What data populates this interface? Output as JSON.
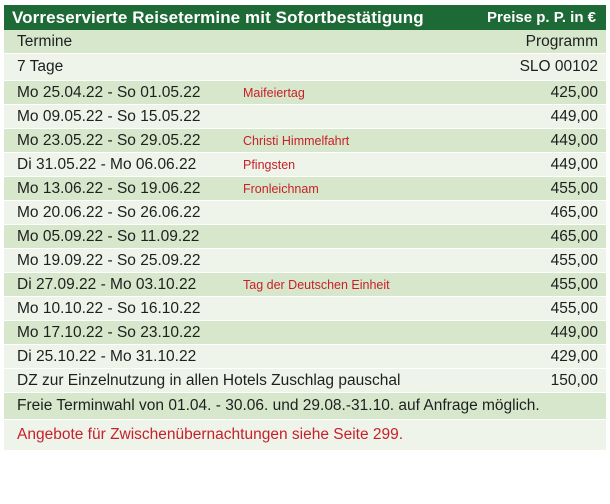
{
  "header": {
    "title": "Vorreservierte Reisetermine mit Sofortbestätigung",
    "price_note": "Preise p. P. in €"
  },
  "subheader": {
    "left": "Termine",
    "right": "Programm"
  },
  "program": {
    "left": "7 Tage",
    "right": "SLO 00102"
  },
  "dates": [
    {
      "date": "Mo 25.04.22 - So 01.05.22",
      "note": "Maifeiertag",
      "price": "425,00"
    },
    {
      "date": "Mo 09.05.22 - So 15.05.22",
      "note": "",
      "price": "449,00"
    },
    {
      "date": "Mo 23.05.22 - So 29.05.22",
      "note": "Christi Himmelfahrt",
      "price": "449,00"
    },
    {
      "date": "Di  31.05.22 - Mo 06.06.22",
      "note": "Pfingsten",
      "price": "449,00"
    },
    {
      "date": "Mo 13.06.22 - So 19.06.22",
      "note": "Fronleichnam",
      "price": "455,00"
    },
    {
      "date": "Mo 20.06.22 - So 26.06.22",
      "note": "",
      "price": "465,00"
    },
    {
      "date": "Mo 05.09.22 - So 11.09.22",
      "note": "",
      "price": "465,00"
    },
    {
      "date": "Mo 19.09.22 - So 25.09.22",
      "note": "",
      "price": "455,00"
    },
    {
      "date": "Di  27.09.22 - Mo 03.10.22",
      "note": "Tag der Deutschen Einheit",
      "price": "455,00"
    },
    {
      "date": "Mo 10.10.22 - So 16.10.22",
      "note": "",
      "price": "455,00"
    },
    {
      "date": "Mo 17.10.22 - So  23.10.22",
      "note": "",
      "price": "449,00"
    },
    {
      "date": "Di  25.10.22 - Mo 31.10.22",
      "note": "",
      "price": "429,00"
    }
  ],
  "surcharge": {
    "text": "DZ zur Einzelnutzung in allen Hotels Zuschlag pauschal",
    "price": "150,00"
  },
  "free_choice": "Freie Terminwahl von 01.04. - 30.06. und 29.08.-31.10. auf Anfrage möglich.",
  "offer": "Angebote für Zwischenübernachtungen siehe Seite 299.",
  "colors": {
    "header_green": "#1e6a36",
    "row_light": "#eef4e9",
    "row_dark": "#d6e7cc",
    "accent_red": "#c8202a"
  }
}
